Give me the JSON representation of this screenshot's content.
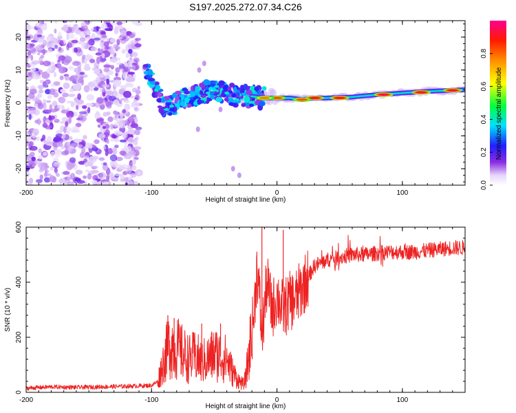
{
  "title": "S197.2025.272.07.34.C26",
  "chart_data": [
    {
      "type": "heatmap",
      "title": "S197.2025.272.07.34.C26",
      "xlabel": "Height of straight line (km)",
      "ylabel": "Frequency (Hz)",
      "xlim": [
        -200,
        150
      ],
      "ylim": [
        -25,
        25
      ],
      "xticks": [
        -200,
        -100,
        0,
        100
      ],
      "yticks": [
        -20,
        -10,
        0,
        10,
        20
      ],
      "colorbar": {
        "label": "Normalized spectral amplitude",
        "range": [
          0,
          1
        ],
        "ticks": [
          "0.0",
          "0.2",
          "0.4",
          "0.6",
          "0.8"
        ],
        "colormap": "white-purple-blue-cyan-green-yellow-orange-red-pink"
      },
      "noise_region": {
        "x_from": -200,
        "x_to": -110,
        "amplitude": 0.1
      },
      "signal_track": [
        {
          "x": -100,
          "freq": 7
        },
        {
          "x": -95,
          "freq": 3
        },
        {
          "x": -90,
          "freq": -2
        },
        {
          "x": -85,
          "freq": -1
        },
        {
          "x": -80,
          "freq": 0
        },
        {
          "x": -70,
          "freq": 2
        },
        {
          "x": -60,
          "freq": 3
        },
        {
          "x": -50,
          "freq": 4
        },
        {
          "x": -40,
          "freq": 3
        },
        {
          "x": -30,
          "freq": 2
        },
        {
          "x": -20,
          "freq": 2
        },
        {
          "x": -10,
          "freq": 1.5
        },
        {
          "x": 0,
          "freq": 1.5
        },
        {
          "x": 10,
          "freq": 1.5
        },
        {
          "x": 20,
          "freq": 1
        },
        {
          "x": 30,
          "freq": 1.5
        },
        {
          "x": 40,
          "freq": 1.5
        },
        {
          "x": 60,
          "freq": 1.8
        },
        {
          "x": 80,
          "freq": 2.5
        },
        {
          "x": 100,
          "freq": 3
        },
        {
          "x": 120,
          "freq": 3.5
        },
        {
          "x": 150,
          "freq": 4
        }
      ],
      "hot_spots": [
        {
          "x": 30,
          "freq": 1.5,
          "amplitude": 1.0
        },
        {
          "x": 50,
          "freq": 1.5,
          "amplitude": 1.0
        },
        {
          "x": 85,
          "freq": 2.5,
          "amplitude": 1.0
        },
        {
          "x": 115,
          "freq": 3.2,
          "amplitude": 1.0
        },
        {
          "x": 140,
          "freq": 3.8,
          "amplitude": 1.0
        },
        {
          "x": 0,
          "freq": 1.5,
          "amplitude": 0.9
        },
        {
          "x": 20,
          "freq": 1.0,
          "amplitude": 0.9
        },
        {
          "x": -10,
          "freq": 1.5,
          "amplitude": 0.85
        }
      ]
    },
    {
      "type": "line",
      "xlabel": "Height of straight line (km)",
      "ylabel": "SNR (10 * v/v)",
      "xlim": [
        -200,
        150
      ],
      "ylim": [
        0,
        600
      ],
      "xticks": [
        -200,
        -100,
        0,
        100
      ],
      "yticks": [
        0,
        200,
        400,
        600
      ],
      "series": [
        {
          "name": "SNR",
          "color": "#ee2222",
          "x": [
            -200,
            -180,
            -160,
            -140,
            -120,
            -100,
            -95,
            -90,
            -85,
            -80,
            -75,
            -70,
            -65,
            -60,
            -55,
            -50,
            -45,
            -40,
            -35,
            -30,
            -27,
            -25,
            -22,
            -20,
            -18,
            -16,
            -14,
            -12,
            -10,
            -8,
            -6,
            -4,
            -2,
            0,
            5,
            10,
            15,
            20,
            25,
            30,
            40,
            50,
            60,
            70,
            80,
            90,
            100,
            110,
            120,
            130,
            140,
            150
          ],
          "values": [
            15,
            20,
            18,
            20,
            22,
            25,
            40,
            120,
            180,
            160,
            140,
            120,
            130,
            110,
            120,
            140,
            130,
            120,
            70,
            40,
            30,
            50,
            150,
            220,
            300,
            450,
            350,
            200,
            300,
            400,
            350,
            300,
            320,
            350,
            300,
            330,
            340,
            380,
            420,
            460,
            480,
            490,
            500,
            500,
            505,
            510,
            510,
            510,
            515,
            520,
            525,
            525
          ],
          "spikes": [
            {
              "x": -87,
              "value": 280
            },
            {
              "x": -82,
              "value": 270
            },
            {
              "x": -60,
              "value": 250
            },
            {
              "x": -45,
              "value": 250
            },
            {
              "x": -12,
              "value": 600
            },
            {
              "x": 5,
              "value": 590
            }
          ]
        }
      ]
    }
  ]
}
